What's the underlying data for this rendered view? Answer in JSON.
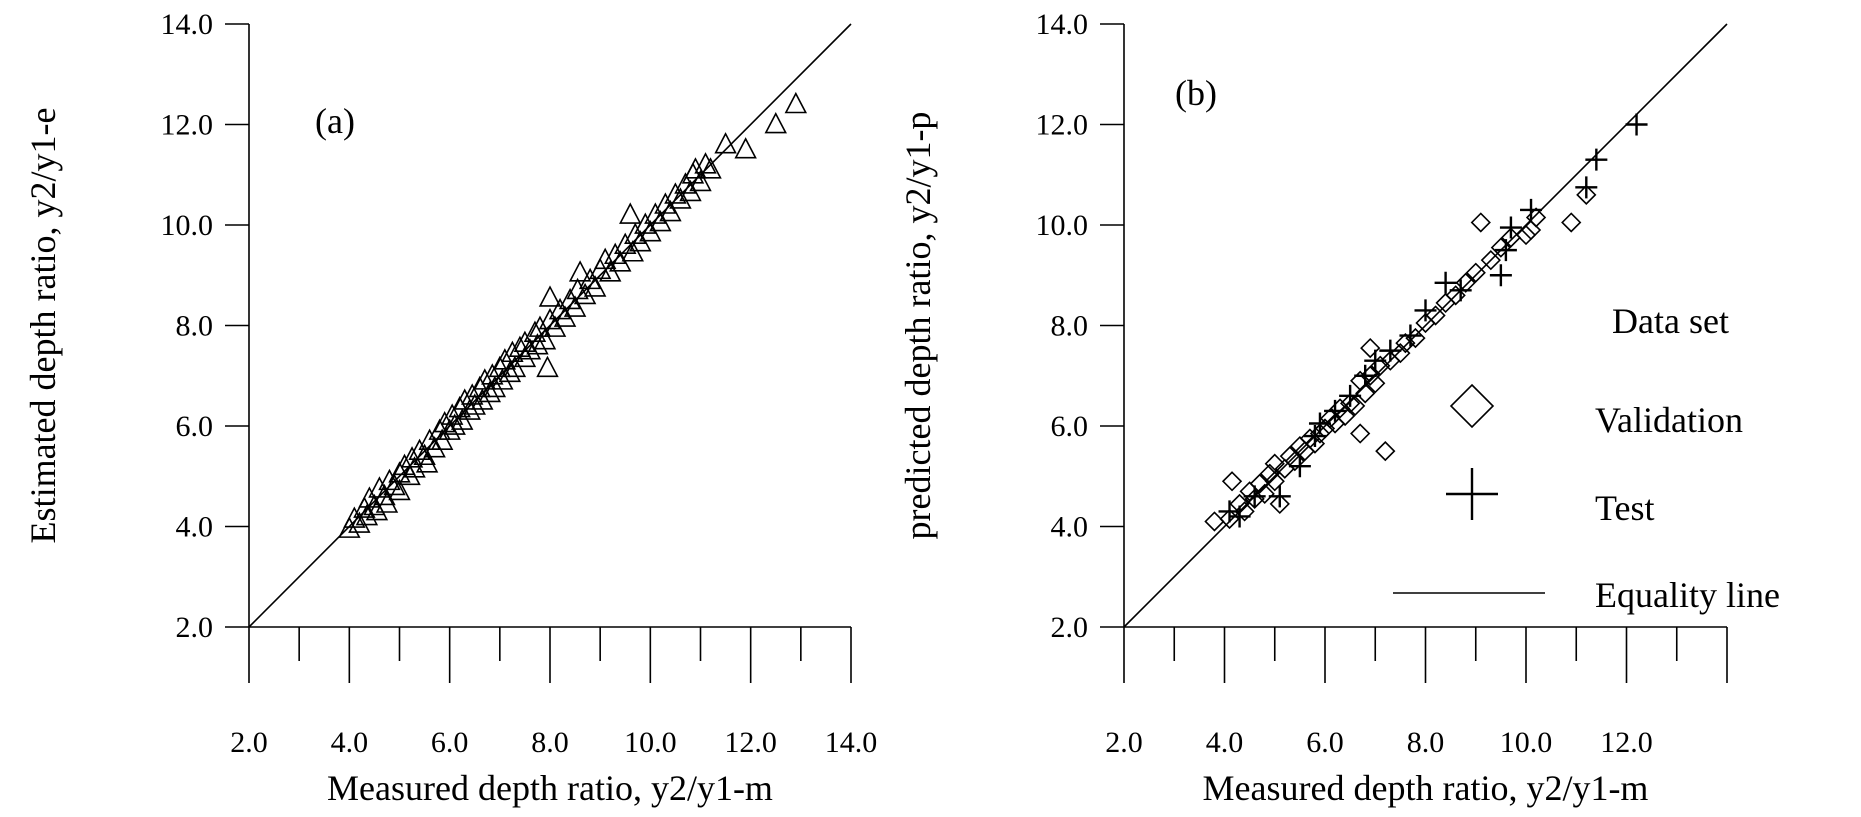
{
  "chart_data": [
    {
      "type": "scatter",
      "panel_label": "(a)",
      "xlabel": "Measured depth ratio, y2/y1-m",
      "ylabel": "Estimated depth ratio, y2/y1-e",
      "xlim": [
        2.0,
        14.0
      ],
      "ylim": [
        2.0,
        14.0
      ],
      "x_ticks": [
        "2.0",
        "4.0",
        "6.0",
        "8.0",
        "10.0",
        "12.0",
        "14.0"
      ],
      "y_ticks": [
        "2.0",
        "4.0",
        "6.0",
        "8.0",
        "10.0",
        "12.0",
        "14.0"
      ],
      "grid": false,
      "equality_line": true,
      "series": [
        {
          "marker": "triangle",
          "points": [
            [
              4.0,
              3.95
            ],
            [
              4.1,
              4.15
            ],
            [
              4.2,
              4.05
            ],
            [
              4.3,
              4.35
            ],
            [
              4.35,
              4.2
            ],
            [
              4.4,
              4.55
            ],
            [
              4.5,
              4.4
            ],
            [
              4.55,
              4.3
            ],
            [
              4.6,
              4.75
            ],
            [
              4.7,
              4.6
            ],
            [
              4.75,
              4.45
            ],
            [
              4.8,
              4.9
            ],
            [
              4.9,
              4.8
            ],
            [
              5.0,
              4.7
            ],
            [
              5.0,
              5.05
            ],
            [
              5.1,
              5.2
            ],
            [
              5.2,
              5.0
            ],
            [
              5.25,
              5.35
            ],
            [
              5.3,
              5.15
            ],
            [
              5.4,
              5.5
            ],
            [
              5.5,
              5.4
            ],
            [
              5.55,
              5.25
            ],
            [
              5.6,
              5.7
            ],
            [
              5.7,
              5.55
            ],
            [
              5.8,
              5.9
            ],
            [
              5.85,
              5.7
            ],
            [
              5.9,
              6.05
            ],
            [
              6.0,
              5.9
            ],
            [
              6.05,
              6.2
            ],
            [
              6.1,
              6.0
            ],
            [
              6.2,
              6.35
            ],
            [
              6.25,
              6.1
            ],
            [
              6.3,
              6.5
            ],
            [
              6.4,
              6.3
            ],
            [
              6.45,
              6.6
            ],
            [
              6.5,
              6.4
            ],
            [
              6.6,
              6.75
            ],
            [
              6.65,
              6.5
            ],
            [
              6.7,
              6.9
            ],
            [
              6.8,
              6.65
            ],
            [
              6.85,
              7.0
            ],
            [
              6.9,
              6.75
            ],
            [
              7.0,
              7.15
            ],
            [
              7.05,
              6.9
            ],
            [
              7.1,
              7.3
            ],
            [
              7.2,
              7.05
            ],
            [
              7.25,
              7.45
            ],
            [
              7.3,
              7.15
            ],
            [
              7.4,
              7.55
            ],
            [
              7.5,
              7.35
            ],
            [
              7.5,
              7.65
            ],
            [
              7.6,
              7.5
            ],
            [
              7.7,
              7.85
            ],
            [
              7.75,
              7.6
            ],
            [
              7.8,
              7.95
            ],
            [
              7.9,
              7.7
            ],
            [
              7.95,
              7.15
            ],
            [
              8.0,
              8.1
            ],
            [
              8.0,
              8.55
            ],
            [
              8.1,
              7.95
            ],
            [
              8.2,
              8.3
            ],
            [
              8.3,
              8.15
            ],
            [
              8.4,
              8.5
            ],
            [
              8.5,
              8.35
            ],
            [
              8.55,
              8.7
            ],
            [
              8.6,
              9.05
            ],
            [
              8.7,
              8.6
            ],
            [
              8.8,
              8.9
            ],
            [
              8.9,
              8.75
            ],
            [
              9.0,
              9.1
            ],
            [
              9.1,
              9.3
            ],
            [
              9.2,
              9.05
            ],
            [
              9.3,
              9.4
            ],
            [
              9.4,
              9.25
            ],
            [
              9.5,
              9.6
            ],
            [
              9.6,
              10.2
            ],
            [
              9.65,
              9.45
            ],
            [
              9.7,
              9.8
            ],
            [
              9.8,
              9.65
            ],
            [
              9.9,
              10.0
            ],
            [
              10.0,
              9.85
            ],
            [
              10.1,
              10.2
            ],
            [
              10.2,
              10.05
            ],
            [
              10.3,
              10.4
            ],
            [
              10.4,
              10.25
            ],
            [
              10.5,
              10.6
            ],
            [
              10.6,
              10.5
            ],
            [
              10.7,
              10.8
            ],
            [
              10.8,
              10.65
            ],
            [
              10.85,
              11.0
            ],
            [
              10.9,
              11.1
            ],
            [
              11.0,
              10.85
            ],
            [
              11.1,
              11.2
            ],
            [
              11.2,
              11.1
            ],
            [
              11.5,
              11.6
            ],
            [
              11.9,
              11.5
            ],
            [
              12.5,
              12.0
            ],
            [
              12.9,
              12.4
            ]
          ]
        }
      ]
    },
    {
      "type": "scatter",
      "panel_label": "(b)",
      "xlabel": "Measured depth ratio, y2/y1-m",
      "ylabel": "predicted depth ratio, y2/y1-p",
      "xlim": [
        2.0,
        14.0
      ],
      "ylim": [
        2.0,
        14.0
      ],
      "x_ticks": [
        "2.0",
        "4.0",
        "6.0",
        "8.0",
        "10.0",
        "12.0"
      ],
      "y_ticks": [
        "2.0",
        "4.0",
        "6.0",
        "8.0",
        "10.0",
        "12.0",
        "14.0"
      ],
      "grid": false,
      "equality_line": true,
      "legend": {
        "title": "Data set",
        "entries": [
          {
            "label": "Validation",
            "marker": "diamond"
          },
          {
            "label": "Test",
            "marker": "plus"
          },
          {
            "label": "Equality line",
            "marker": "line"
          }
        ],
        "placement": "center-right"
      },
      "series": [
        {
          "name": "Validation",
          "marker": "diamond",
          "points": [
            [
              3.8,
              4.1
            ],
            [
              4.1,
              4.15
            ],
            [
              4.15,
              4.9
            ],
            [
              4.3,
              4.45
            ],
            [
              4.4,
              4.3
            ],
            [
              4.5,
              4.7
            ],
            [
              4.6,
              4.55
            ],
            [
              4.7,
              4.85
            ],
            [
              4.8,
              4.65
            ],
            [
              4.9,
              5.05
            ],
            [
              5.0,
              4.9
            ],
            [
              5.0,
              5.25
            ],
            [
              5.1,
              4.45
            ],
            [
              5.2,
              5.15
            ],
            [
              5.3,
              5.4
            ],
            [
              5.4,
              5.3
            ],
            [
              5.5,
              5.6
            ],
            [
              5.6,
              5.5
            ],
            [
              5.7,
              5.75
            ],
            [
              5.8,
              5.65
            ],
            [
              5.9,
              5.85
            ],
            [
              6.0,
              5.95
            ],
            [
              6.1,
              6.15
            ],
            [
              6.2,
              6.05
            ],
            [
              6.3,
              6.35
            ],
            [
              6.4,
              6.2
            ],
            [
              6.5,
              6.45
            ],
            [
              6.6,
              6.4
            ],
            [
              6.7,
              6.9
            ],
            [
              6.7,
              5.85
            ],
            [
              6.8,
              6.65
            ],
            [
              6.9,
              7.0
            ],
            [
              6.9,
              7.55
            ],
            [
              7.0,
              6.85
            ],
            [
              7.1,
              7.2
            ],
            [
              7.2,
              5.5
            ],
            [
              7.3,
              7.3
            ],
            [
              7.5,
              7.45
            ],
            [
              7.6,
              7.65
            ],
            [
              7.8,
              7.75
            ],
            [
              8.0,
              8.05
            ],
            [
              8.2,
              8.2
            ],
            [
              8.4,
              8.45
            ],
            [
              8.6,
              8.6
            ],
            [
              8.8,
              8.85
            ],
            [
              9.0,
              9.05
            ],
            [
              9.1,
              10.05
            ],
            [
              9.3,
              9.3
            ],
            [
              9.5,
              9.55
            ],
            [
              9.7,
              9.75
            ],
            [
              10.0,
              9.8
            ],
            [
              10.1,
              9.9
            ],
            [
              10.2,
              10.15
            ],
            [
              10.9,
              10.05
            ],
            [
              11.2,
              10.6
            ]
          ]
        },
        {
          "name": "Test",
          "marker": "plus",
          "points": [
            [
              4.1,
              4.3
            ],
            [
              4.3,
              4.2
            ],
            [
              4.6,
              4.6
            ],
            [
              5.1,
              4.6
            ],
            [
              5.5,
              5.2
            ],
            [
              5.8,
              5.8
            ],
            [
              5.9,
              6.05
            ],
            [
              6.2,
              6.3
            ],
            [
              6.5,
              6.6
            ],
            [
              6.8,
              7.0
            ],
            [
              7.0,
              7.3
            ],
            [
              7.3,
              7.5
            ],
            [
              7.7,
              7.8
            ],
            [
              8.0,
              8.3
            ],
            [
              8.4,
              8.85
            ],
            [
              8.7,
              8.7
            ],
            [
              9.5,
              9.0
            ],
            [
              9.6,
              9.5
            ],
            [
              9.7,
              9.95
            ],
            [
              10.1,
              10.3
            ],
            [
              11.2,
              10.75
            ],
            [
              11.4,
              11.3
            ],
            [
              12.2,
              12.0
            ]
          ]
        }
      ]
    }
  ]
}
